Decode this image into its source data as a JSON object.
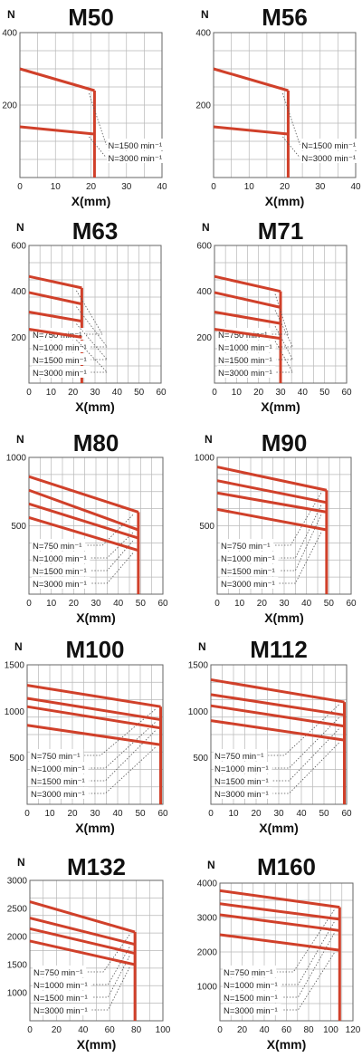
{
  "colors": {
    "curve": "#d0402a",
    "grid": "#b8b8b8",
    "frame": "#666666",
    "dotted": "#555555"
  },
  "chart_data": [
    {
      "type": "line",
      "title": "M50",
      "ylabel": "N",
      "xlabel": "X(mm)",
      "xlim": [
        0,
        40
      ],
      "ylim": [
        0,
        400
      ],
      "xticks": [
        "0",
        "10",
        "20",
        "30",
        "40"
      ],
      "yticks": [
        "200",
        "400"
      ],
      "x_limit": 21,
      "series": [
        {
          "name": "N=1500 min⁻¹",
          "values": [
            [
              0,
              300
            ],
            [
              21,
              240
            ]
          ]
        },
        {
          "name": "N=3000 min⁻¹",
          "values": [
            [
              0,
              140
            ],
            [
              21,
              120
            ]
          ]
        }
      ]
    },
    {
      "type": "line",
      "title": "M56",
      "ylabel": "N",
      "xlabel": "X(mm)",
      "xlim": [
        0,
        40
      ],
      "ylim": [
        0,
        400
      ],
      "xticks": [
        "0",
        "10",
        "20",
        "30",
        "40"
      ],
      "yticks": [
        "200",
        "400"
      ],
      "x_limit": 21,
      "series": [
        {
          "name": "N=1500 min⁻¹",
          "values": [
            [
              0,
              300
            ],
            [
              21,
              240
            ]
          ]
        },
        {
          "name": "N=3000 min⁻¹",
          "values": [
            [
              0,
              140
            ],
            [
              21,
              120
            ]
          ]
        }
      ]
    },
    {
      "type": "line",
      "title": "M63",
      "ylabel": "N",
      "xlabel": "X(mm)",
      "xlim": [
        0,
        60
      ],
      "ylim": [
        0,
        600
      ],
      "xticks": [
        "0",
        "10",
        "20",
        "30",
        "40",
        "50",
        "60"
      ],
      "yticks": [
        "200",
        "400",
        "600"
      ],
      "x_limit": 24,
      "series": [
        {
          "name": "N=750 min⁻¹",
          "values": [
            [
              0,
              465
            ],
            [
              24,
              415
            ]
          ]
        },
        {
          "name": "N=1000 min⁻¹",
          "values": [
            [
              0,
              395
            ],
            [
              24,
              345
            ]
          ]
        },
        {
          "name": "N=1500 min⁻¹",
          "values": [
            [
              0,
              310
            ],
            [
              24,
              270
            ]
          ]
        },
        {
          "name": "N=3000 min⁻¹",
          "values": [
            [
              0,
              235
            ],
            [
              24,
              200
            ]
          ]
        }
      ]
    },
    {
      "type": "line",
      "title": "M71",
      "ylabel": "N",
      "xlabel": "X(mm)",
      "xlim": [
        0,
        60
      ],
      "ylim": [
        0,
        600
      ],
      "xticks": [
        "0",
        "10",
        "20",
        "30",
        "40",
        "50",
        "60"
      ],
      "yticks": [
        "200",
        "400",
        "600"
      ],
      "x_limit": 30,
      "series": [
        {
          "name": "N=750 min⁻¹",
          "values": [
            [
              0,
              465
            ],
            [
              30,
              400
            ]
          ]
        },
        {
          "name": "N=1000 min⁻¹",
          "values": [
            [
              0,
              395
            ],
            [
              30,
              330
            ]
          ]
        },
        {
          "name": "N=1500 min⁻¹",
          "values": [
            [
              0,
              310
            ],
            [
              30,
              260
            ]
          ]
        },
        {
          "name": "N=3000 min⁻¹",
          "values": [
            [
              0,
              235
            ],
            [
              30,
              195
            ]
          ]
        }
      ]
    },
    {
      "type": "line",
      "title": "M80",
      "ylabel": "N",
      "xlabel": "X(mm)",
      "xlim": [
        0,
        60
      ],
      "ylim": [
        0,
        1000
      ],
      "xticks": [
        "0",
        "10",
        "20",
        "30",
        "40",
        "50",
        "60"
      ],
      "yticks": [
        "500",
        "1000"
      ],
      "x_limit": 49,
      "series": [
        {
          "name": "N=750 min⁻¹",
          "values": [
            [
              0,
              860
            ],
            [
              49,
              600
            ]
          ]
        },
        {
          "name": "N=1000 min⁻¹",
          "values": [
            [
              0,
              760
            ],
            [
              49,
              470
            ]
          ]
        },
        {
          "name": "N=1500 min⁻¹",
          "values": [
            [
              0,
              660
            ],
            [
              49,
              410
            ]
          ]
        },
        {
          "name": "N=3000 min⁻¹",
          "values": [
            [
              0,
              560
            ],
            [
              49,
              320
            ]
          ]
        }
      ]
    },
    {
      "type": "line",
      "title": "M90",
      "ylabel": "N",
      "xlabel": "X(mm)",
      "xlim": [
        0,
        60
      ],
      "ylim": [
        0,
        1000
      ],
      "xticks": [
        "0",
        "10",
        "20",
        "30",
        "40",
        "50",
        "60"
      ],
      "yticks": [
        "500",
        "1000"
      ],
      "x_limit": 49,
      "series": [
        {
          "name": "N=750 min⁻¹",
          "values": [
            [
              0,
              930
            ],
            [
              49,
              760
            ]
          ]
        },
        {
          "name": "N=1000 min⁻¹",
          "values": [
            [
              0,
              830
            ],
            [
              49,
              670
            ]
          ]
        },
        {
          "name": "N=1500 min⁻¹",
          "values": [
            [
              0,
              740
            ],
            [
              49,
              600
            ]
          ]
        },
        {
          "name": "N=3000 min⁻¹",
          "values": [
            [
              0,
              620
            ],
            [
              49,
              470
            ]
          ]
        }
      ]
    },
    {
      "type": "line",
      "title": "M100",
      "ylabel": "N",
      "xlabel": "X(mm)",
      "xlim": [
        0,
        60
      ],
      "ylim": [
        0,
        1500
      ],
      "xticks": [
        "0",
        "10",
        "20",
        "30",
        "40",
        "50",
        "60"
      ],
      "yticks": [
        "500",
        "1000",
        "1500"
      ],
      "x_limit": 59,
      "series": [
        {
          "name": "N=750 min⁻¹",
          "values": [
            [
              0,
              1280
            ],
            [
              59,
              1050
            ]
          ]
        },
        {
          "name": "N=1000 min⁻¹",
          "values": [
            [
              0,
              1140
            ],
            [
              59,
              910
            ]
          ]
        },
        {
          "name": "N=1500 min⁻¹",
          "values": [
            [
              0,
              1050
            ],
            [
              59,
              820
            ]
          ]
        },
        {
          "name": "N=3000 min⁻¹",
          "values": [
            [
              0,
              850
            ],
            [
              59,
              640
            ]
          ]
        }
      ]
    },
    {
      "type": "line",
      "title": "M112",
      "ylabel": "N",
      "xlabel": "X(mm)",
      "xlim": [
        0,
        60
      ],
      "ylim": [
        0,
        1500
      ],
      "xticks": [
        "0",
        "10",
        "20",
        "30",
        "40",
        "50",
        "60"
      ],
      "yticks": [
        "500",
        "1000",
        "1500"
      ],
      "x_limit": 59,
      "series": [
        {
          "name": "N=750 min⁻¹",
          "values": [
            [
              0,
              1340
            ],
            [
              59,
              1100
            ]
          ]
        },
        {
          "name": "N=1000 min⁻¹",
          "values": [
            [
              0,
              1180
            ],
            [
              59,
              960
            ]
          ]
        },
        {
          "name": "N=1500 min⁻¹",
          "values": [
            [
              0,
              1060
            ],
            [
              59,
              840
            ]
          ]
        },
        {
          "name": "N=3000 min⁻¹",
          "values": [
            [
              0,
              900
            ],
            [
              59,
              690
            ]
          ]
        }
      ]
    },
    {
      "type": "line",
      "title": "M132",
      "ylabel": "N",
      "xlabel": "X(mm)",
      "xlim": [
        0,
        100
      ],
      "ylim": [
        500,
        3000
      ],
      "xticks": [
        "0",
        "20",
        "40",
        "60",
        "80",
        "100"
      ],
      "yticks": [
        "1000",
        "1500",
        "2000",
        "2500",
        "3000"
      ],
      "x_limit": 79,
      "series": [
        {
          "name": "N=750 min⁻¹",
          "values": [
            [
              0,
              2620
            ],
            [
              79,
              2080
            ]
          ]
        },
        {
          "name": "N=1000 min⁻¹",
          "values": [
            [
              0,
              2330
            ],
            [
              79,
              1860
            ]
          ]
        },
        {
          "name": "N=1500 min⁻¹",
          "values": [
            [
              0,
              2140
            ],
            [
              79,
              1700
            ]
          ]
        },
        {
          "name": "N=3000 min⁻¹",
          "values": [
            [
              0,
              1920
            ],
            [
              79,
              1500
            ]
          ]
        }
      ]
    },
    {
      "type": "line",
      "title": "M160",
      "ylabel": "N",
      "xlabel": "X(mm)",
      "xlim": [
        0,
        120
      ],
      "ylim": [
        0,
        4000
      ],
      "xticks": [
        "0",
        "20",
        "40",
        "60",
        "80",
        "100",
        "120"
      ],
      "yticks": [
        "1000",
        "2000",
        "3000",
        "4000"
      ],
      "x_limit": 108,
      "series": [
        {
          "name": "N=750 min⁻¹",
          "values": [
            [
              0,
              3780
            ],
            [
              108,
              3300
            ]
          ]
        },
        {
          "name": "N=1000 min⁻¹",
          "values": [
            [
              0,
              3400
            ],
            [
              108,
              2950
            ]
          ]
        },
        {
          "name": "N=1500 min⁻¹",
          "values": [
            [
              0,
              3080
            ],
            [
              108,
              2620
            ]
          ]
        },
        {
          "name": "N=3000 min⁻¹",
          "values": [
            [
              0,
              2500
            ],
            [
              108,
              2050
            ]
          ]
        }
      ]
    }
  ]
}
